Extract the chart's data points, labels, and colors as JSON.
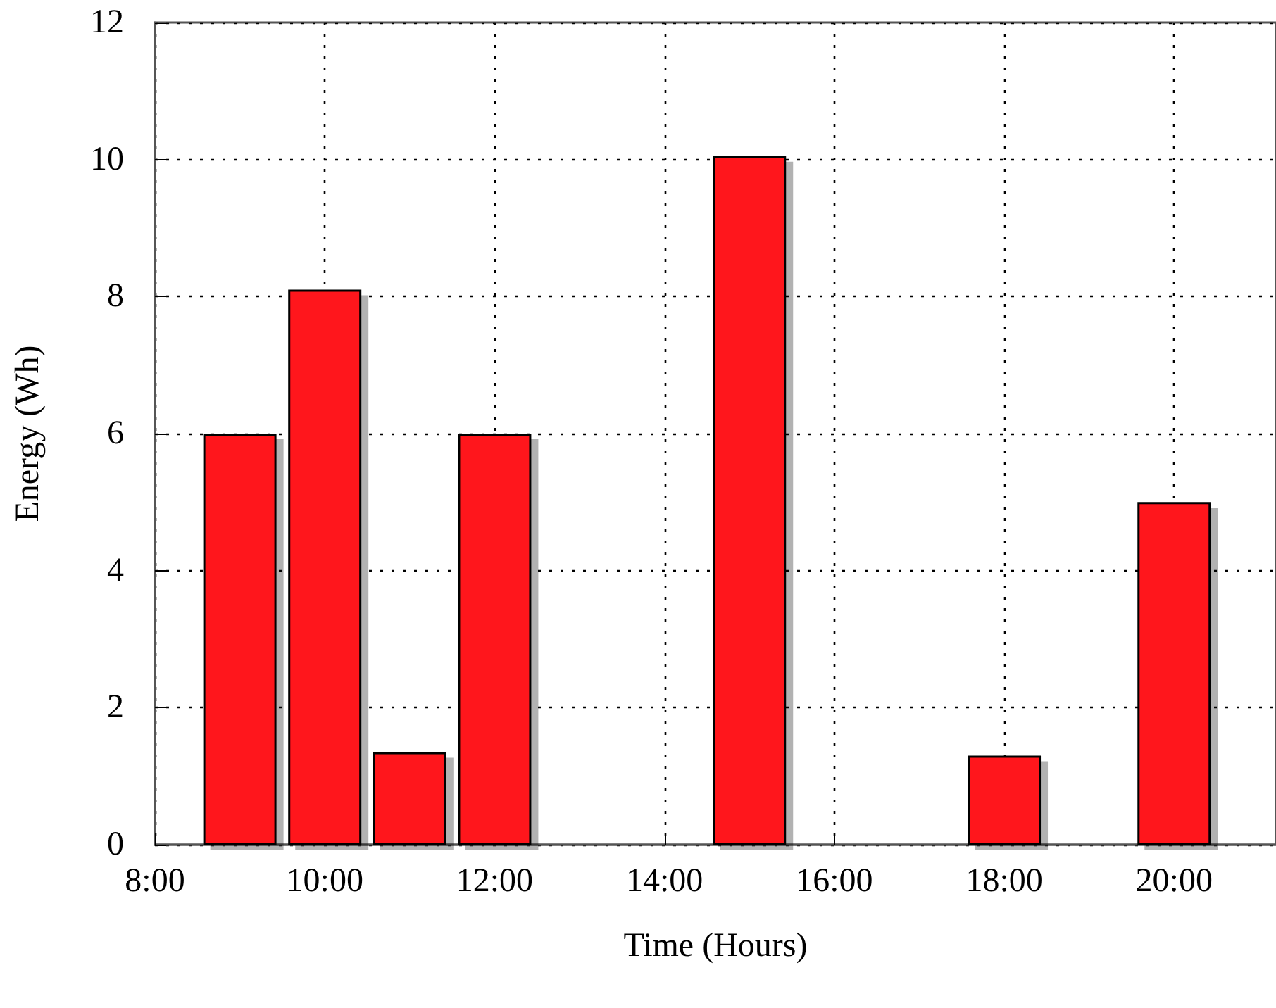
{
  "chart_data": {
    "type": "bar",
    "xlabel": "Time (Hours)",
    "ylabel": "Energy (Wh)",
    "x": [
      9,
      10,
      11,
      12,
      15,
      18,
      20
    ],
    "values": [
      6,
      8.1,
      1.35,
      6,
      10.05,
      1.3,
      5
    ],
    "color": "#ff141e",
    "xlim": [
      8,
      21.2
    ],
    "xticks": [
      {
        "value": 8,
        "label": "8:00"
      },
      {
        "value": 10,
        "label": "10:00"
      },
      {
        "value": 12,
        "label": "12:00"
      },
      {
        "value": 14,
        "label": "14:00"
      },
      {
        "value": 16,
        "label": "16:00"
      },
      {
        "value": 18,
        "label": "18:00"
      },
      {
        "value": 20,
        "label": "20:00"
      }
    ],
    "ylim": [
      0,
      12
    ],
    "yticks": [
      0,
      2,
      4,
      6,
      8,
      10,
      12
    ],
    "grid": true
  }
}
